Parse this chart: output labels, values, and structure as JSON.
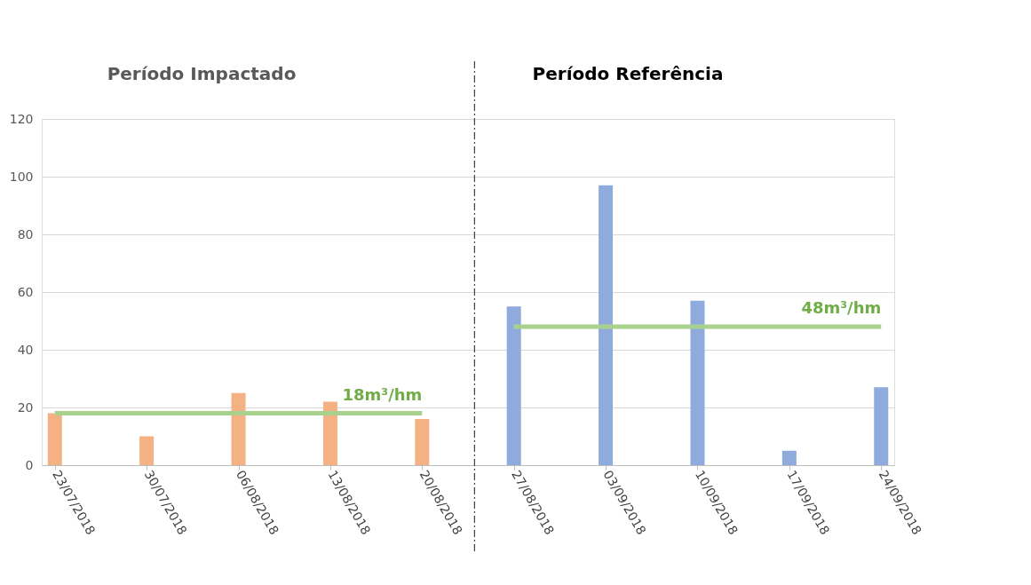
{
  "chart_data": {
    "type": "bar",
    "annotations": [
      "Período Impactado",
      "Período Referência"
    ],
    "series": [
      {
        "color": "#f4b183",
        "x": [
          "2018-07-23",
          "2018-07-30",
          "2018-08-06",
          "2018-08-13",
          "2018-08-20"
        ],
        "values": [
          18,
          10,
          25,
          22,
          16
        ]
      },
      {
        "color": "#8faadc",
        "x": [
          "2018-08-27",
          "2018-09-03",
          "2018-09-10",
          "2018-09-17",
          "2018-09-24"
        ],
        "values": [
          55,
          97,
          57,
          5,
          27
        ]
      },
      {
        "type": "line",
        "name": "18m³/hm",
        "color": "#a9d18e",
        "x": [
          "2018-07-23",
          "2018-08-20"
        ],
        "values": [
          18,
          18
        ]
      },
      {
        "type": "line",
        "name": "48m³/hm",
        "color": "#a9d18e",
        "x": [
          "2018-08-27",
          "2018-09-24"
        ],
        "values": [
          48,
          48
        ]
      }
    ],
    "xlim": [
      "2018-07-22",
      "2018-09-25"
    ],
    "xticks": [
      {
        "value": "2018-07-23",
        "label": "23/07/2018"
      },
      {
        "value": "2018-07-30",
        "label": "30/07/2018"
      },
      {
        "value": "2018-08-06",
        "label": "06/08/2018"
      },
      {
        "value": "2018-08-13",
        "label": "13/08/2018"
      },
      {
        "value": "2018-08-20",
        "label": "20/08/2018"
      },
      {
        "value": "2018-08-27",
        "label": "27/08/2018"
      },
      {
        "value": "2018-09-03",
        "label": "03/09/2018"
      },
      {
        "value": "2018-09-10",
        "label": "10/09/2018"
      },
      {
        "value": "2018-09-17",
        "label": "17/09/2018"
      },
      {
        "value": "2018-09-24",
        "label": "24/09/2018"
      }
    ],
    "ylim": [
      0,
      120
    ],
    "yticks": [
      0,
      20,
      40,
      60,
      80,
      100,
      120
    ],
    "grid": "y",
    "ref_lines": [
      {
        "axis": "x",
        "value": "2018-08-24",
        "color": "#404040",
        "line_style": "dashed"
      }
    ]
  }
}
